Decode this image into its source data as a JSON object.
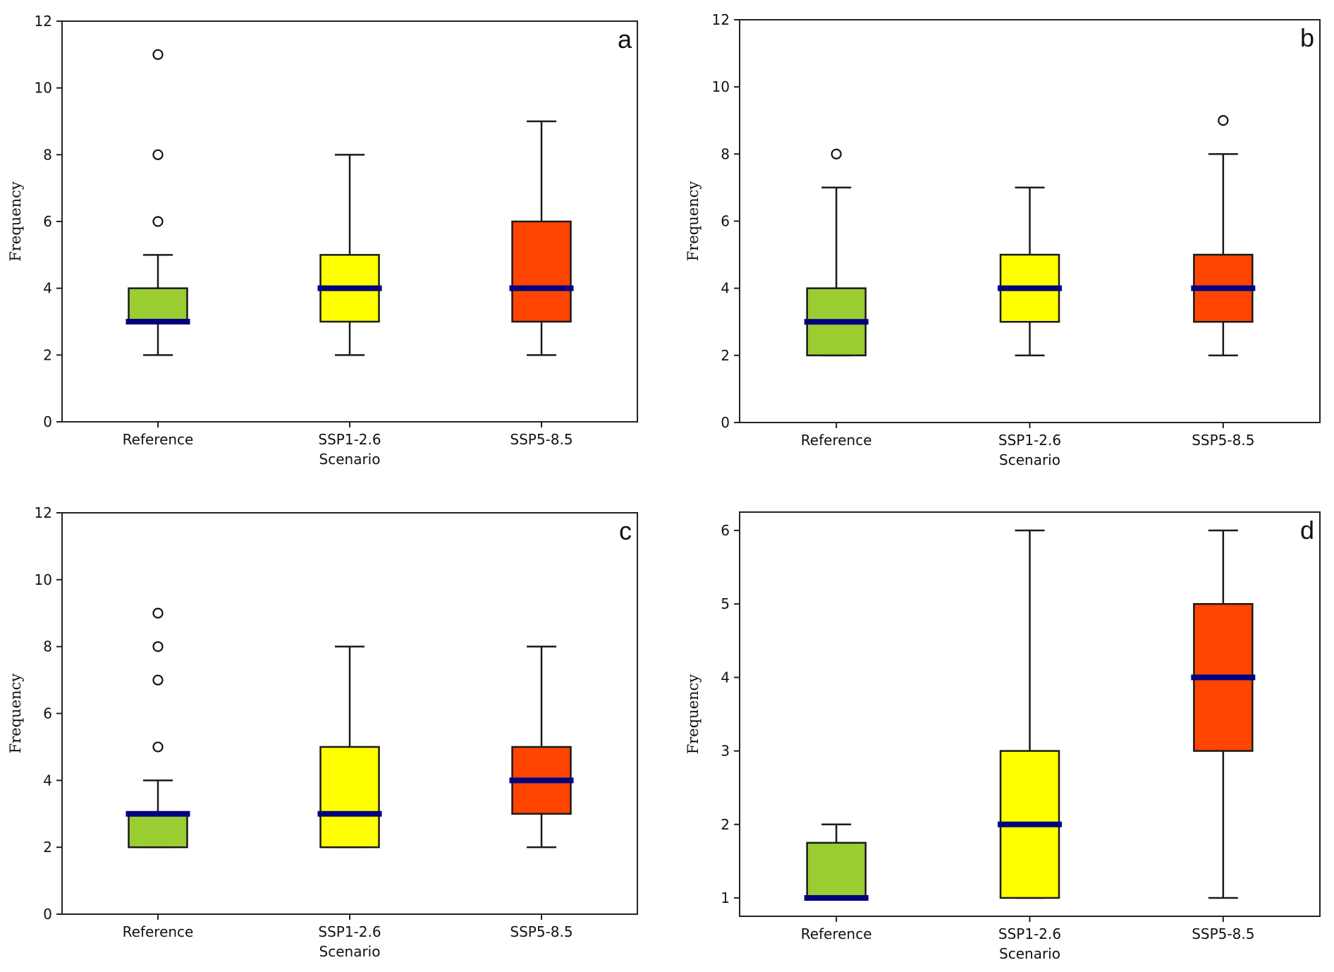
{
  "chart_data": {
    "type": "box",
    "colors": {
      "Reference": "#9ACD32",
      "SSP1-2.6": "#FFFF00",
      "SSP5-8.5": "#FF4500",
      "median": "#000080",
      "outline": "#1a1a1a"
    },
    "panels": [
      {
        "label": "a",
        "xlabel": "Scenario",
        "ylabel": "Frequency",
        "ylim": [
          0,
          12
        ],
        "yticks": [
          0,
          2,
          4,
          6,
          8,
          10,
          12
        ],
        "categories": [
          "Reference",
          "SSP1-2.6",
          "SSP5-8.5"
        ],
        "boxes": [
          {
            "category": "Reference",
            "whisker_low": 2,
            "q1": 3,
            "median": 3,
            "q3": 4,
            "whisker_high": 5,
            "outliers": [
              6,
              8,
              11
            ]
          },
          {
            "category": "SSP1-2.6",
            "whisker_low": 2,
            "q1": 3,
            "median": 4,
            "q3": 5,
            "whisker_high": 8,
            "outliers": []
          },
          {
            "category": "SSP5-8.5",
            "whisker_low": 2,
            "q1": 3,
            "median": 4,
            "q3": 6,
            "whisker_high": 9,
            "outliers": []
          }
        ]
      },
      {
        "label": "b",
        "xlabel": "Scenario",
        "ylabel": "Frequency",
        "ylim": [
          0,
          12
        ],
        "yticks": [
          0,
          2,
          4,
          6,
          8,
          10,
          12
        ],
        "categories": [
          "Reference",
          "SSP1-2.6",
          "SSP5-8.5"
        ],
        "boxes": [
          {
            "category": "Reference",
            "whisker_low": 2,
            "q1": 2,
            "median": 3,
            "q3": 4,
            "whisker_high": 7,
            "outliers": [
              8
            ]
          },
          {
            "category": "SSP1-2.6",
            "whisker_low": 2,
            "q1": 3,
            "median": 4,
            "q3": 5,
            "whisker_high": 7,
            "outliers": []
          },
          {
            "category": "SSP5-8.5",
            "whisker_low": 2,
            "q1": 3,
            "median": 4,
            "q3": 5,
            "whisker_high": 8,
            "outliers": [
              9
            ]
          }
        ]
      },
      {
        "label": "c",
        "xlabel": "Scenario",
        "ylabel": "Frequency",
        "ylim": [
          0,
          12
        ],
        "yticks": [
          0,
          2,
          4,
          6,
          8,
          10,
          12
        ],
        "categories": [
          "Reference",
          "SSP1-2.6",
          "SSP5-8.5"
        ],
        "boxes": [
          {
            "category": "Reference",
            "whisker_low": 2,
            "q1": 2,
            "median": 3,
            "q3": 3,
            "whisker_high": 4,
            "outliers": [
              5,
              7,
              8,
              9
            ]
          },
          {
            "category": "SSP1-2.6",
            "whisker_low": 2,
            "q1": 2,
            "median": 3,
            "q3": 5,
            "whisker_high": 8,
            "outliers": []
          },
          {
            "category": "SSP5-8.5",
            "whisker_low": 2,
            "q1": 3,
            "median": 4,
            "q3": 5,
            "whisker_high": 8,
            "outliers": []
          }
        ]
      },
      {
        "label": "d",
        "xlabel": "Scenario",
        "ylabel": "Frequency",
        "ylim": [
          0.75,
          6.25
        ],
        "yticks": [
          1,
          2,
          3,
          4,
          5,
          6
        ],
        "categories": [
          "Reference",
          "SSP1-2.6",
          "SSP5-8.5"
        ],
        "boxes": [
          {
            "category": "Reference",
            "whisker_low": 1,
            "q1": 1,
            "median": 1,
            "q3": 1.75,
            "whisker_high": 2,
            "outliers": []
          },
          {
            "category": "SSP1-2.6",
            "whisker_low": 1,
            "q1": 1,
            "median": 2,
            "q3": 3,
            "whisker_high": 6,
            "outliers": []
          },
          {
            "category": "SSP5-8.5",
            "whisker_low": 1,
            "q1": 3,
            "median": 4,
            "q3": 5,
            "whisker_high": 6,
            "outliers": []
          }
        ]
      }
    ]
  }
}
